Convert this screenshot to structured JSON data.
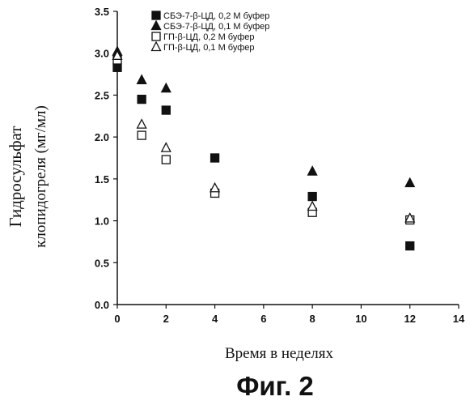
{
  "chart_data": {
    "type": "scatter",
    "title": "",
    "xlabel": "Время в неделях",
    "ylabel_line1": "Гидросульфат",
    "ylabel_line2": "клопидогреля (мг/мл)",
    "xlim": [
      0,
      14
    ],
    "ylim": [
      0,
      3.5
    ],
    "x_ticks": [
      0,
      2,
      4,
      6,
      8,
      10,
      12,
      14
    ],
    "y_ticks": [
      0.0,
      0.5,
      1.0,
      1.5,
      2.0,
      2.5,
      3.0,
      3.5
    ],
    "y_tick_labels": [
      "0.0",
      "0.5",
      "1.0",
      "1.5",
      "2.0",
      "2.5",
      "3.0",
      "3.5"
    ],
    "grid": false,
    "legend_position": "top-right",
    "series": [
      {
        "name": "СБЭ-7-β-ЦД, 0,2 М буфер",
        "marker": "filled-square",
        "points": [
          [
            0,
            2.83
          ],
          [
            1,
            2.45
          ],
          [
            2,
            2.32
          ],
          [
            4,
            1.75
          ],
          [
            8,
            1.29
          ],
          [
            12,
            0.7
          ]
        ]
      },
      {
        "name": "СБЭ-7-β-ЦД, 0,1 М буфер",
        "marker": "filled-triangle",
        "points": [
          [
            0,
            3.02
          ],
          [
            1,
            2.68
          ],
          [
            2,
            2.58
          ],
          [
            8,
            1.59
          ],
          [
            12,
            1.45
          ]
        ]
      },
      {
        "name": "ГП-β-ЦД, 0,2 М буфер",
        "marker": "open-square",
        "points": [
          [
            0,
            2.92
          ],
          [
            1,
            2.02
          ],
          [
            2,
            1.73
          ],
          [
            4,
            1.33
          ],
          [
            8,
            1.1
          ],
          [
            12,
            1.01
          ]
        ]
      },
      {
        "name": "ГП-β-ЦД, 0,1 М буфер",
        "marker": "open-triangle",
        "points": [
          [
            0,
            2.97
          ],
          [
            1,
            2.15
          ],
          [
            2,
            1.87
          ],
          [
            4,
            1.39
          ],
          [
            8,
            1.17
          ],
          [
            12,
            1.03
          ]
        ]
      }
    ]
  },
  "figure_caption": "Фиг. 2",
  "colors": {
    "ink": "#111111",
    "background": "#ffffff"
  }
}
